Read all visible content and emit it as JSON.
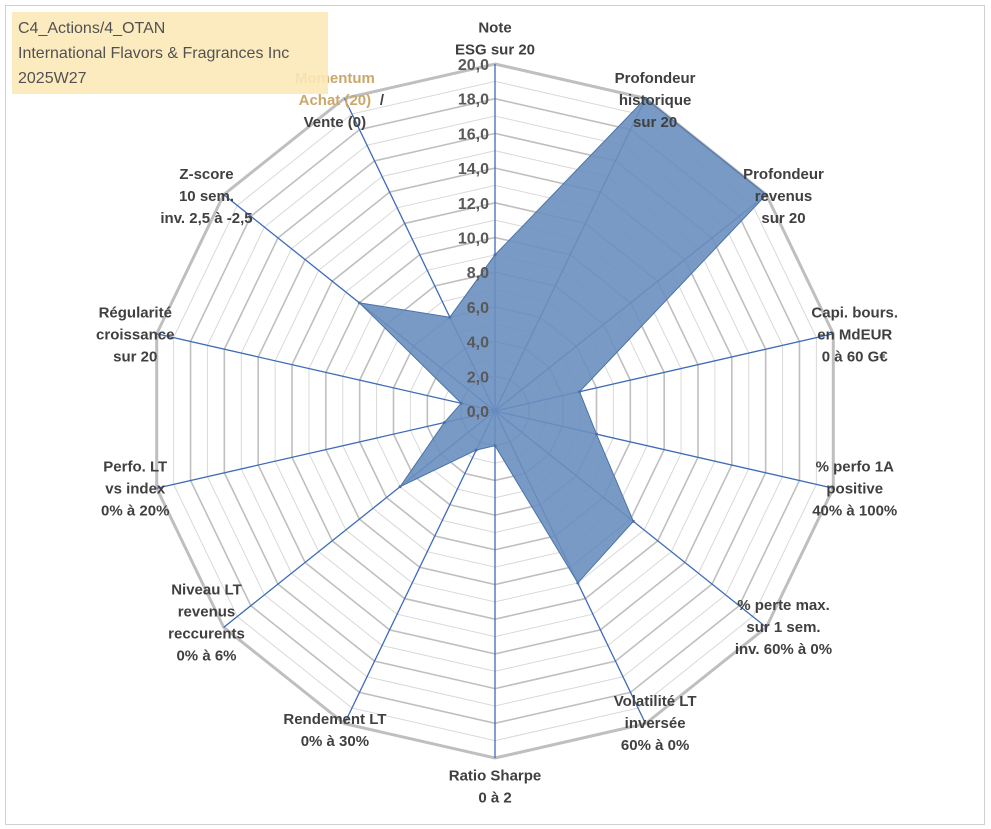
{
  "title_box": {
    "line1": "C4_Actions/4_OTAN",
    "line2": "International Flavors & Fragrances Inc",
    "line3": "2025W27",
    "background": "#fde9b8"
  },
  "chart_data": {
    "type": "radar",
    "ylim": [
      0,
      20
    ],
    "tick_step": 2,
    "tick_labels": [
      "0,0",
      "2,0",
      "4,0",
      "6,0",
      "8,0",
      "10,0",
      "12,0",
      "14,0",
      "16,0",
      "18,0",
      "20,0"
    ],
    "grid": true,
    "fill_color": "#6a8fbf",
    "axis_color": "#3d6bb8",
    "grid_color": "#bfbfbf",
    "axes": [
      {
        "label_lines": [
          "Note",
          "ESG sur 20"
        ],
        "value": 9.0
      },
      {
        "label_lines": [
          "Profondeur",
          "historique",
          "sur 20"
        ],
        "value": 20.0
      },
      {
        "label_lines": [
          "Profondeur",
          "revenus",
          "sur 20"
        ],
        "value": 20.0
      },
      {
        "label_lines": [
          "Capi. bours.",
          "en MdEUR",
          "0 à 60 G€"
        ],
        "value": 5.0
      },
      {
        "label_lines": [
          "% perfo 1A",
          "positive",
          "40% à 100%"
        ],
        "value": 6.0
      },
      {
        "label_lines": [
          "% perte max.",
          "sur 1 sem.",
          "inv. 60% à 0%"
        ],
        "value": 10.2
      },
      {
        "label_lines": [
          "Volatilité LT",
          "inversée",
          "60% à 0%"
        ],
        "value": 11.0
      },
      {
        "label_lines": [
          "Ratio Sharpe",
          "0 à 2"
        ],
        "value": 2.0
      },
      {
        "label_lines": [
          "Rendement LT",
          "0% à 30%"
        ],
        "value": 2.5
      },
      {
        "label_lines": [
          "Niveau LT",
          "revenus",
          "reccurents",
          "0% à 6%"
        ],
        "value": 7.0
      },
      {
        "label_lines": [
          "Perfo. LT",
          "vs index",
          "0% à 20%"
        ],
        "value": 3.0
      },
      {
        "label_lines": [
          "Régularité",
          "croissance",
          "sur 20"
        ],
        "value": 2.0
      },
      {
        "label_lines": [
          "Z-score",
          "10 sem.",
          "inv. 2,5 à -2,5"
        ],
        "value": 10.0
      },
      {
        "label_lines": [
          "Momentum",
          "Achat (20) /",
          "Vente (0)"
        ],
        "value": 6.0
      }
    ]
  }
}
